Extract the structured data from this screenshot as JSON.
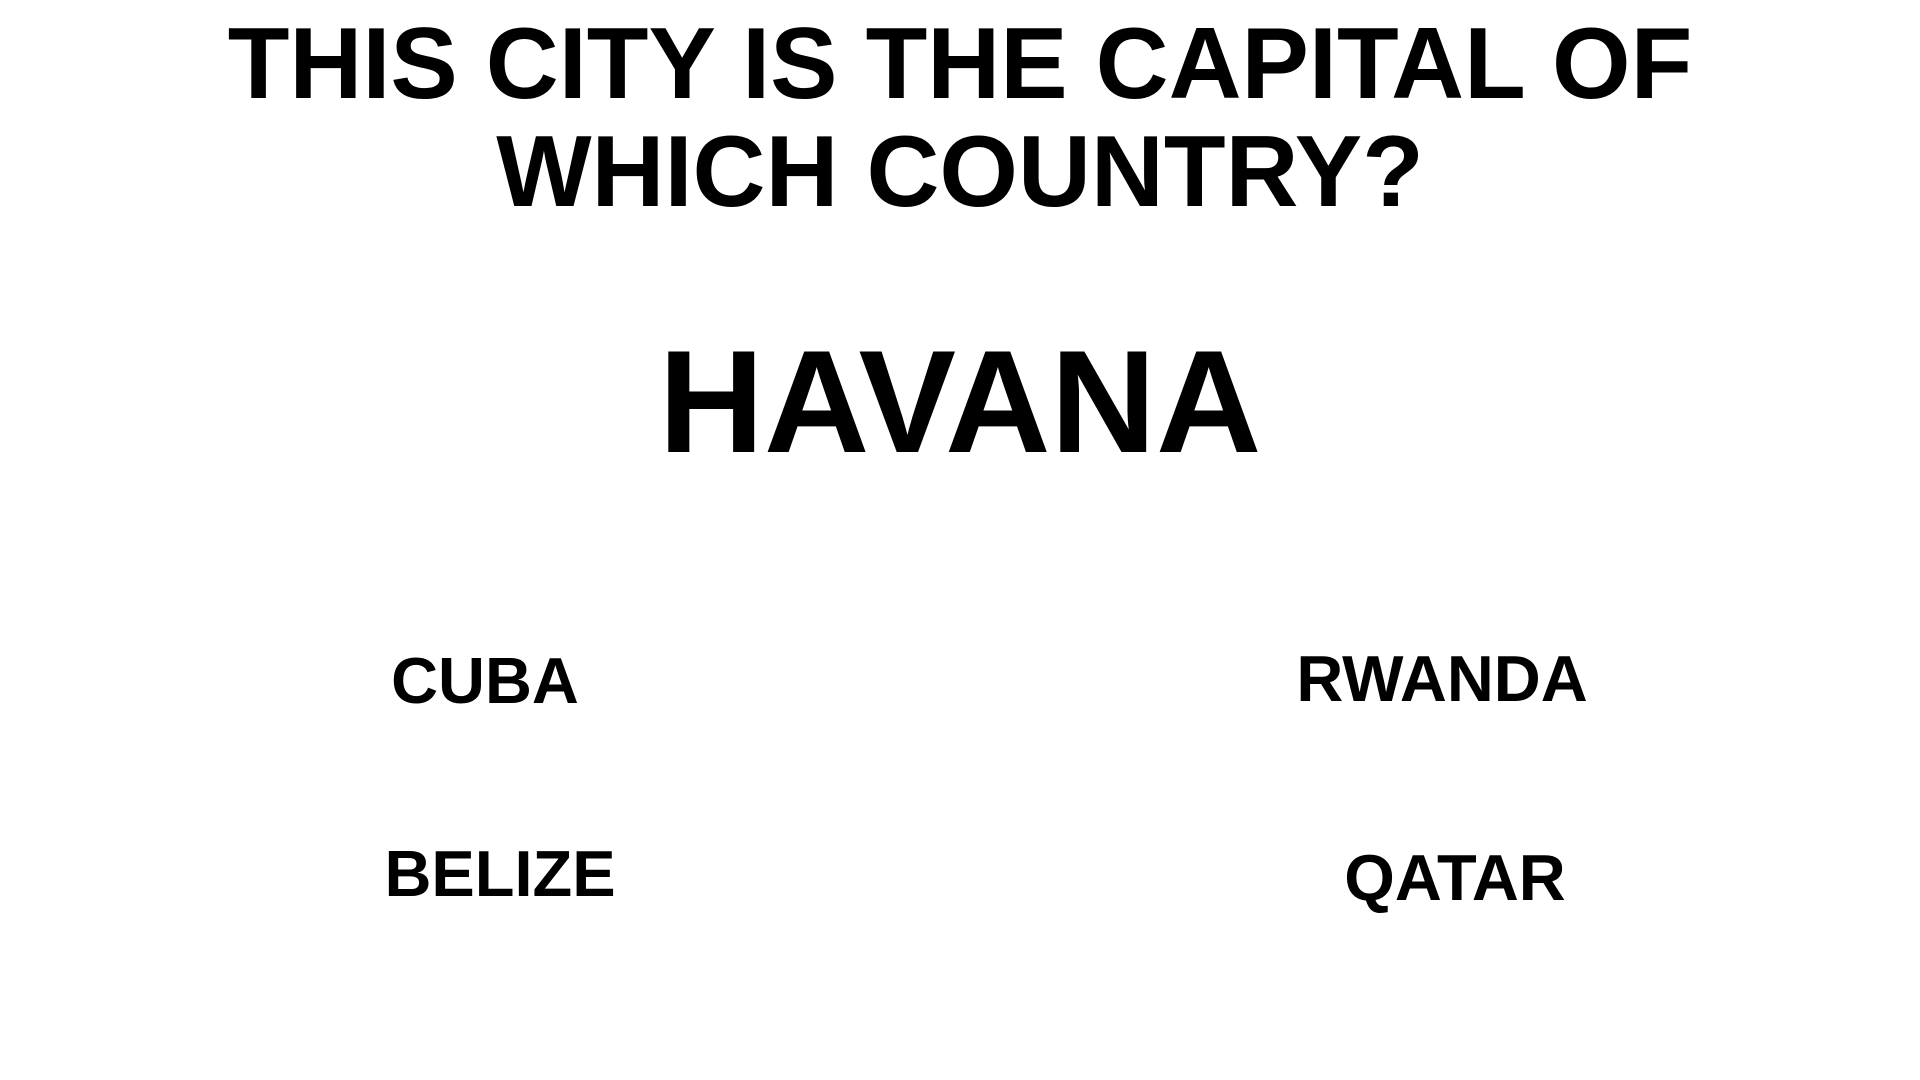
{
  "quiz": {
    "question": "THIS CITY IS THE CAPITAL OF WHICH COUNTRY?",
    "city": "HAVANA",
    "options": [
      {
        "label": "CUBA"
      },
      {
        "label": "RWANDA"
      },
      {
        "label": "BELIZE"
      },
      {
        "label": "QATAR"
      }
    ]
  }
}
